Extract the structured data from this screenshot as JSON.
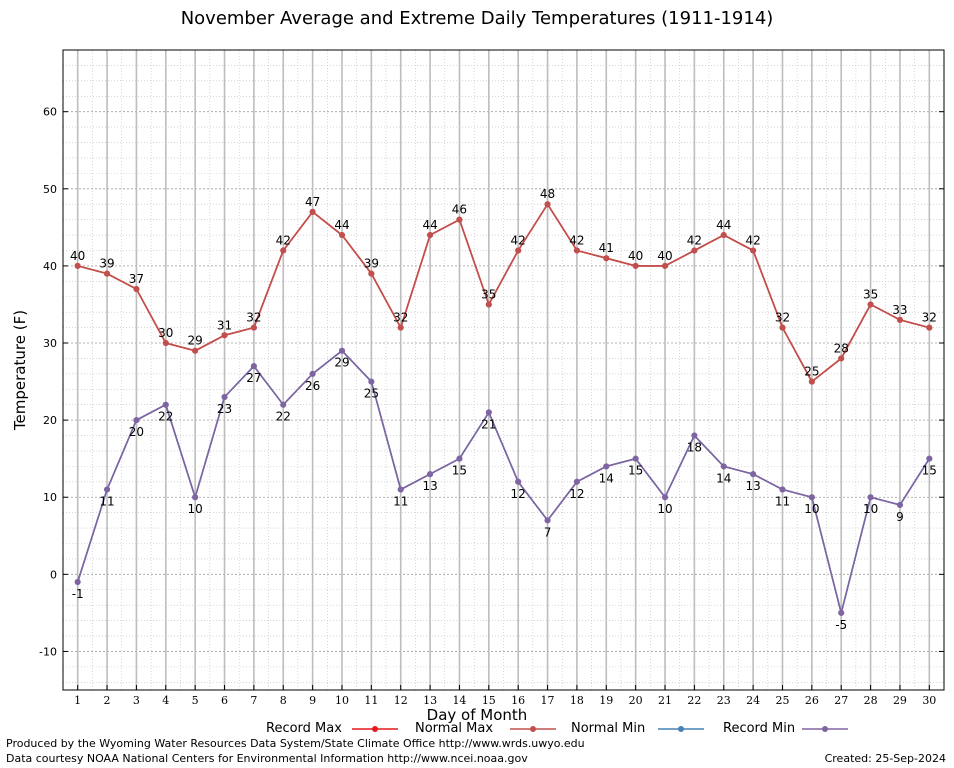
{
  "chart_data": {
    "type": "line",
    "title": "November Average and Extreme Daily Temperatures (1911-1914)",
    "xlabel": "Day of Month",
    "ylabel": "Temperature (F)",
    "x": [
      1,
      2,
      3,
      4,
      5,
      6,
      7,
      8,
      9,
      10,
      11,
      12,
      13,
      14,
      15,
      16,
      17,
      18,
      19,
      20,
      21,
      22,
      23,
      24,
      25,
      26,
      27,
      28,
      29,
      30
    ],
    "xlim": [
      0.5,
      30.5
    ],
    "ylim": [
      -15,
      68
    ],
    "yticks": [
      -10,
      0,
      10,
      20,
      30,
      40,
      50,
      60
    ],
    "grid": true,
    "legend_position": "bottom",
    "series": [
      {
        "name": "Record Max",
        "color": "#e41a1c",
        "values": [
          40,
          39,
          37,
          30,
          29,
          31,
          32,
          42,
          47,
          44,
          39,
          32,
          44,
          46,
          35,
          42,
          48,
          42,
          41,
          40,
          40,
          42,
          44,
          42,
          32,
          25,
          28,
          35,
          33,
          32
        ]
      },
      {
        "name": "Normal Max",
        "color": "#c0504d",
        "values": [
          40,
          39,
          37,
          30,
          29,
          31,
          32,
          42,
          47,
          44,
          39,
          32,
          44,
          46,
          35,
          42,
          48,
          42,
          41,
          40,
          40,
          42,
          44,
          42,
          32,
          25,
          28,
          35,
          33,
          32
        ]
      },
      {
        "name": "Normal Min",
        "color": "#4682b4",
        "values": [
          -1,
          11,
          20,
          22,
          10,
          23,
          27,
          22,
          26,
          29,
          25,
          11,
          13,
          15,
          21,
          12,
          7,
          12,
          14,
          15,
          10,
          18,
          14,
          13,
          11,
          10,
          -5,
          10,
          9,
          15
        ]
      },
      {
        "name": "Record Min",
        "color": "#8064a2",
        "values": [
          -1,
          11,
          20,
          22,
          10,
          23,
          27,
          22,
          26,
          29,
          25,
          11,
          13,
          15,
          21,
          12,
          7,
          12,
          14,
          15,
          10,
          18,
          14,
          13,
          11,
          10,
          -5,
          10,
          9,
          15
        ]
      }
    ],
    "max_labels": [
      "40",
      "39",
      "37",
      "30",
      "29",
      "31",
      "32",
      "42",
      "47",
      "44",
      "39",
      "32",
      "44",
      "46",
      "35",
      "42",
      "48",
      "42",
      "41",
      "40",
      "40",
      "42",
      "44",
      "42",
      "32",
      "25",
      "28",
      "35",
      "33",
      "32"
    ],
    "min_labels": [
      "-1",
      "11",
      "20",
      "22",
      "10",
      "23",
      "27",
      "22",
      "26",
      "29",
      "25",
      "11",
      "13",
      "15",
      "21",
      "12",
      "7",
      "12",
      "14",
      "15",
      "10",
      "18",
      "14",
      "13",
      "11",
      "10",
      "-5",
      "10",
      "9",
      "15"
    ]
  },
  "legend": {
    "record_max": "Record Max",
    "normal_max": "Normal Max",
    "normal_min": "Normal Min",
    "record_min": "Record Min"
  },
  "footer": {
    "produced_by": "Produced by the Wyoming Water Resources Data System/State Climate Office http://www.wrds.uwyo.edu",
    "courtesy": "Data courtesy NOAA National Centers for Environmental Information http://www.ncei.noaa.gov",
    "created": "Created:  25-Sep-2024"
  }
}
